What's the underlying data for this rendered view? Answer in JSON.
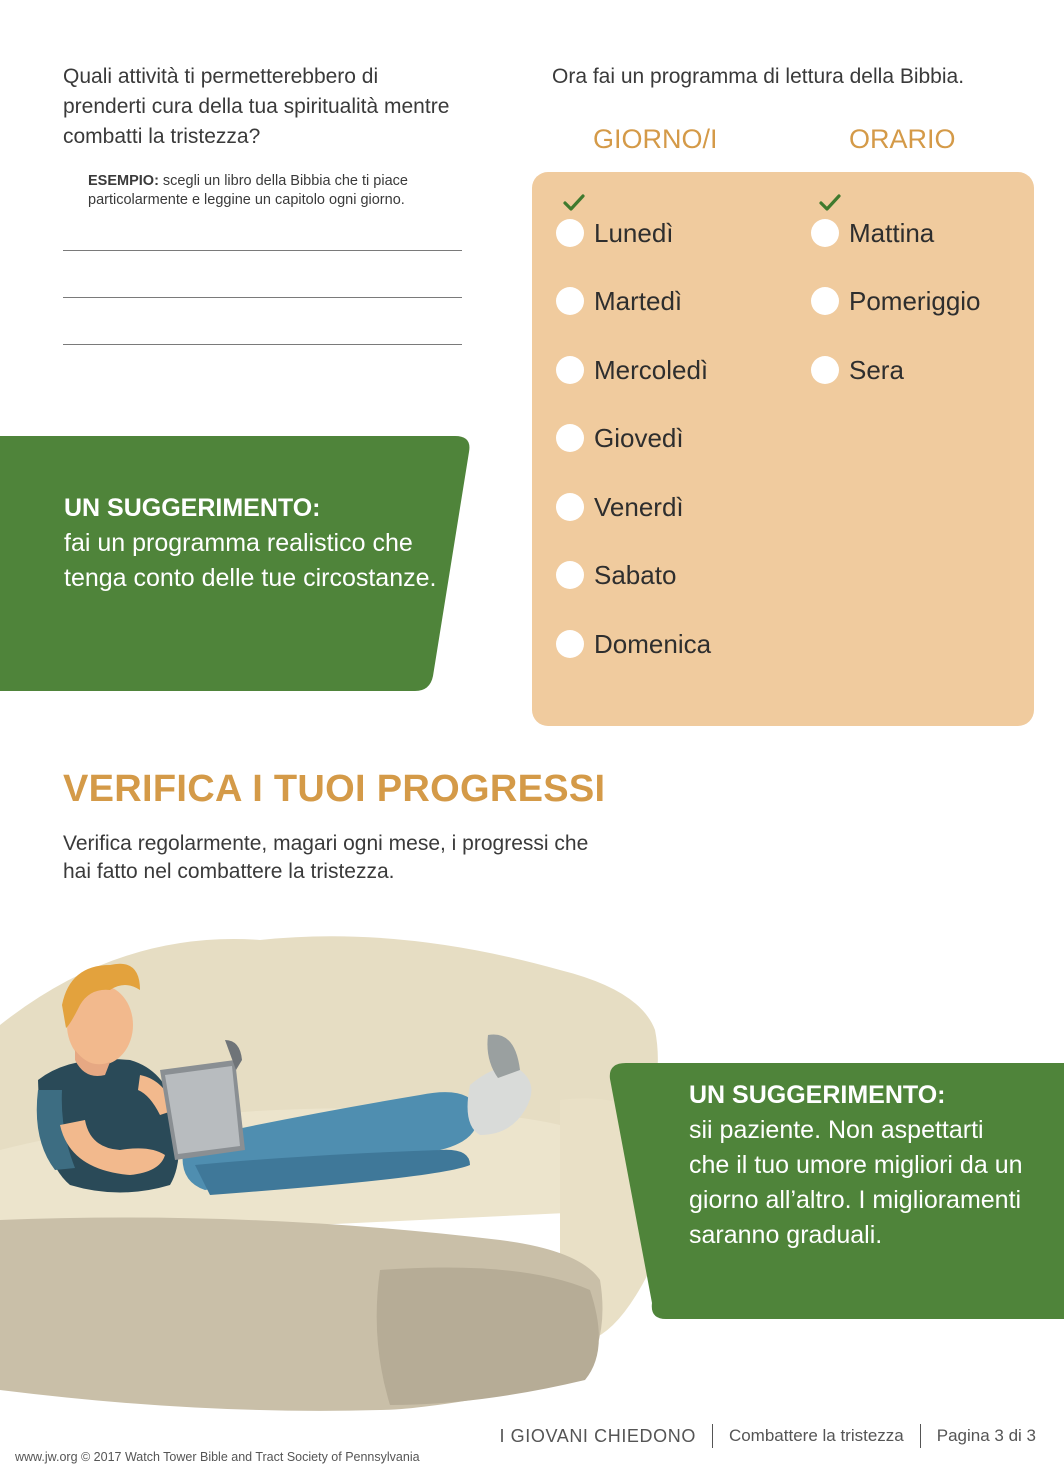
{
  "activities": {
    "question": "Quali attività ti permetterebbero di prenderti cura della tua spiritualità mentre combatti la tristezza?",
    "example_label": "ESEMPIO:",
    "example_text": " scegli un libro della Bibbia che ti piace particolarmente e leggine un capitolo ogni giorno."
  },
  "tip_left": {
    "title": "UN SUGGERIMENTO:",
    "text": "fai un programma realistico che tenga conto delle tue circostanze."
  },
  "plan": {
    "intro": "Ora fai un programma di lettura della Bibbia.",
    "days_header": "GIORNO/I",
    "time_header": "ORARIO",
    "days": [
      "Lunedì",
      "Martedì",
      "Mercoledì",
      "Giovedì",
      "Venerdì",
      "Sabato",
      "Domenica"
    ],
    "times": [
      "Mattina",
      "Pomeriggio",
      "Sera"
    ]
  },
  "progress": {
    "heading": "VERIFICA I TUOI PROGRESSI",
    "text": "Verifica regolarmente, magari ogni mese, i progressi che hai fatto nel combattere la tristezza."
  },
  "tip_right": {
    "title": "UN SUGGERIMENTO:",
    "text": "sii paziente. Non aspettarti che il tuo umore migliori da un giorno all’altro. I miglioramenti saranno graduali."
  },
  "footer": {
    "series": "I GIOVANI CHIEDONO",
    "topic": "Combattere la tristezza",
    "page": "Pagina 3 di 3",
    "copyright": "www.jw.org © 2017 Watch Tower Bible and Tract Society of Pennsylvania"
  },
  "colors": {
    "accent_orange": "#d49a48",
    "tip_green": "#4f843a",
    "schedule_bg": "#f0cb9e",
    "check_green": "#3f7a2e"
  },
  "icons": [
    "check-icon",
    "radio-circle"
  ]
}
